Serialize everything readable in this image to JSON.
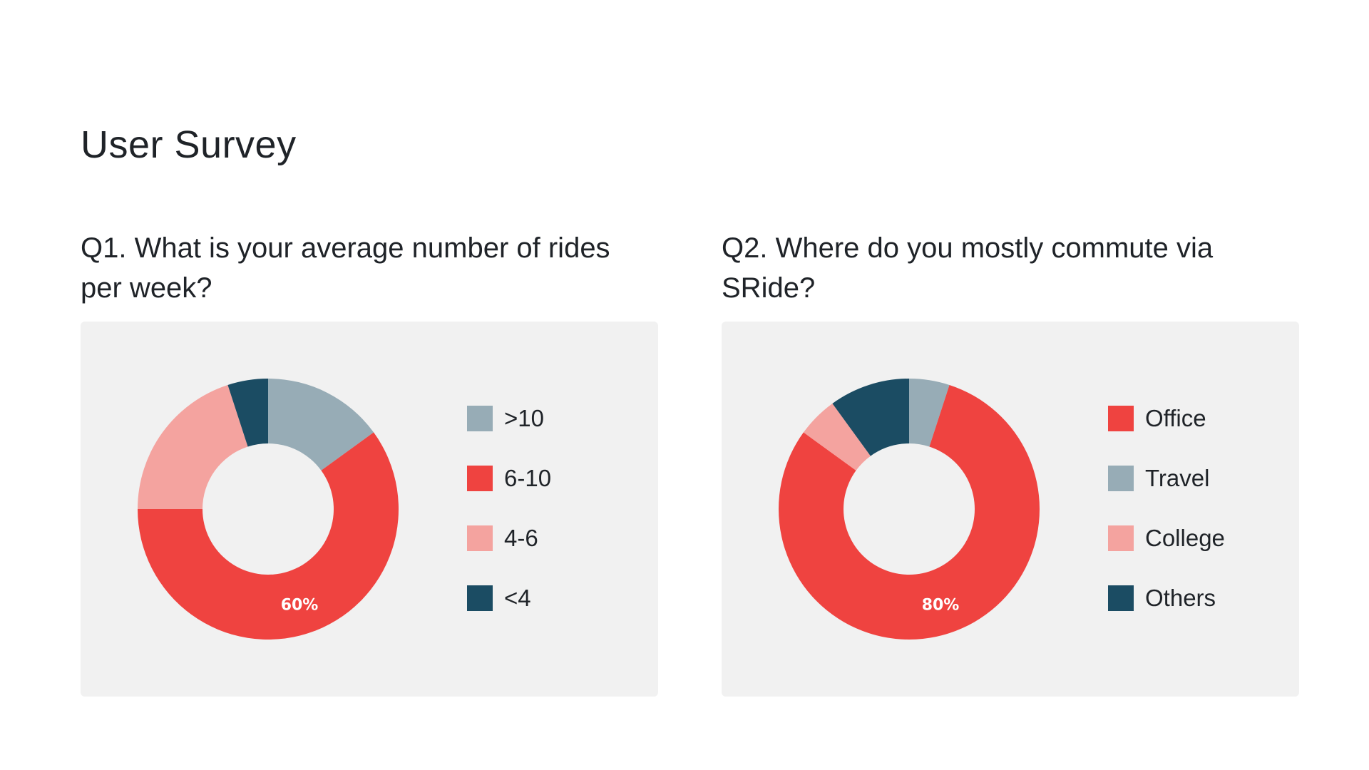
{
  "title": "User Survey",
  "colors": {
    "gray_blue": "#97acb6",
    "red": "#ef4340",
    "pink": "#f4a39f",
    "navy": "#1b4c63",
    "card_bg": "#f1f1f1"
  },
  "chart_data": [
    {
      "type": "pie",
      "variant": "donut",
      "title": "Q1. What is your average number of rides per week?",
      "categories": [
        ">10",
        "6-10",
        "4-6",
        "<4"
      ],
      "values": [
        15,
        60,
        20,
        5
      ],
      "colors": [
        "#97acb6",
        "#ef4340",
        "#f4a39f",
        "#1b4c63"
      ],
      "data_labels": [
        "",
        "60%",
        "",
        ""
      ],
      "legend_position": "right"
    },
    {
      "type": "pie",
      "variant": "donut",
      "title": "Q2. Where do you mostly commute via SRide?",
      "categories": [
        "Office",
        "Travel",
        "College",
        "Others"
      ],
      "values": [
        80,
        5,
        5,
        10
      ],
      "slice_order": [
        "Travel",
        "Office",
        "College",
        "Others"
      ],
      "colors": [
        "#ef4340",
        "#97acb6",
        "#f4a39f",
        "#1b4c63"
      ],
      "data_labels": [
        "80%",
        "",
        "",
        ""
      ],
      "legend_position": "right"
    }
  ]
}
